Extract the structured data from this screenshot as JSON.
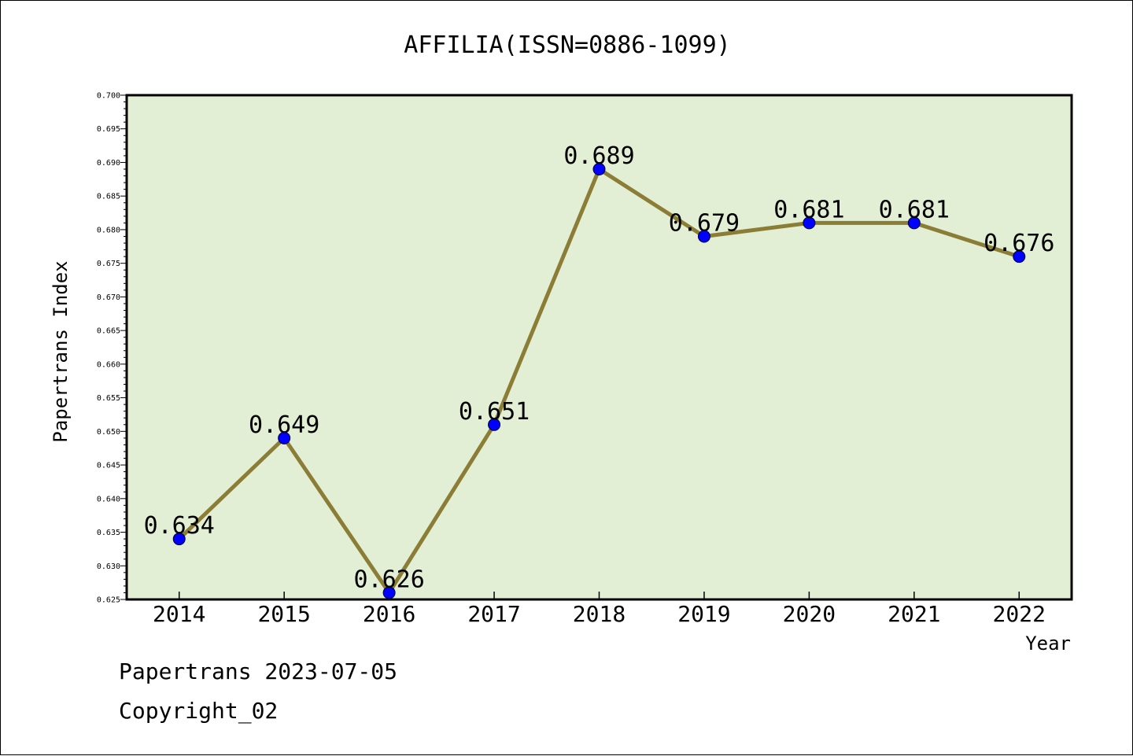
{
  "chart_data": {
    "type": "line",
    "title": "AFFILIA(ISSN=0886-1099)",
    "xlabel": "Year",
    "ylabel": "Papertrans Index",
    "categories": [
      "2014",
      "2015",
      "2016",
      "2017",
      "2018",
      "2019",
      "2020",
      "2021",
      "2022"
    ],
    "values": [
      0.634,
      0.649,
      0.626,
      0.651,
      0.689,
      0.679,
      0.681,
      0.681,
      0.676
    ],
    "data_labels": [
      "0.634",
      "0.649",
      "0.626",
      "0.651",
      "0.689",
      "0.679",
      "0.681",
      "0.681",
      "0.676"
    ],
    "ylim": [
      0.625,
      0.7
    ],
    "yticks": [
      "0.625",
      "0.630",
      "0.635",
      "0.640",
      "0.645",
      "0.650",
      "0.655",
      "0.660",
      "0.665",
      "0.670",
      "0.675",
      "0.680",
      "0.685",
      "0.690",
      "0.695",
      "0.700"
    ],
    "grid": false,
    "legend": "none",
    "colors": {
      "plot_background": "#e2efd5",
      "line": "#8b7d35",
      "marker": "#0000ff",
      "axis": "#000000"
    }
  },
  "footer": {
    "date": "Papertrans 2023-07-05",
    "copyright": "Copyright_02"
  }
}
